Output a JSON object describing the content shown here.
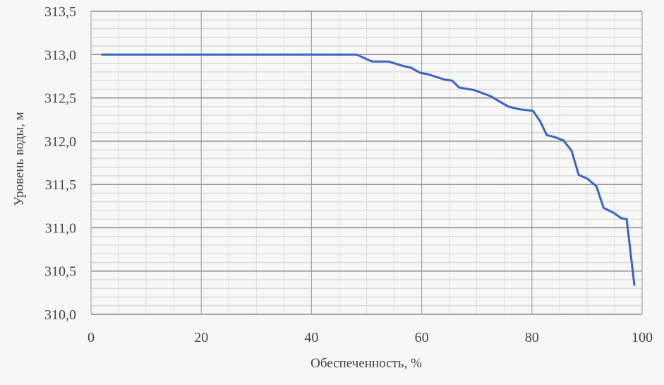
{
  "chart_data": {
    "type": "line",
    "title": "",
    "xlabel": "Обеспеченность, %",
    "ylabel": "Уровень воды, м",
    "xlim": [
      0,
      100
    ],
    "ylim": [
      310.0,
      313.5
    ],
    "x_ticks": [
      "0",
      "20",
      "40",
      "60",
      "80",
      "100"
    ],
    "x_tick_values": [
      0,
      20,
      40,
      60,
      80,
      100
    ],
    "y_ticks": [
      "310,0",
      "310,5",
      "311,0",
      "311,5",
      "312,0",
      "312,5",
      "313,0",
      "313,5"
    ],
    "y_tick_values": [
      310.0,
      310.5,
      311.0,
      311.5,
      312.0,
      312.5,
      313.0,
      313.5
    ],
    "grid": true,
    "minor_grid": {
      "x_step": 5,
      "y_step": 0.1
    },
    "series_color": "#3a64c0",
    "series": [
      {
        "x": [
          1.9,
          48.2,
          51,
          54,
          56.5,
          58,
          59.7,
          61.3,
          64.2,
          65.5,
          66.8,
          69.5,
          72.5,
          73.8,
          75.7,
          77.6,
          80.2,
          81.5,
          82.7,
          84,
          85.7,
          87.2,
          88.5,
          90,
          91.7,
          93,
          94.9,
          96.2,
          97.2,
          98.6
        ],
        "y": [
          313.0,
          313.0,
          312.92,
          312.92,
          312.87,
          312.85,
          312.79,
          312.77,
          312.71,
          312.7,
          312.62,
          312.59,
          312.52,
          312.47,
          312.4,
          312.37,
          312.35,
          312.23,
          312.07,
          312.05,
          312.01,
          311.89,
          311.61,
          311.57,
          311.48,
          311.23,
          311.17,
          311.11,
          311.1,
          310.33
        ]
      }
    ]
  }
}
